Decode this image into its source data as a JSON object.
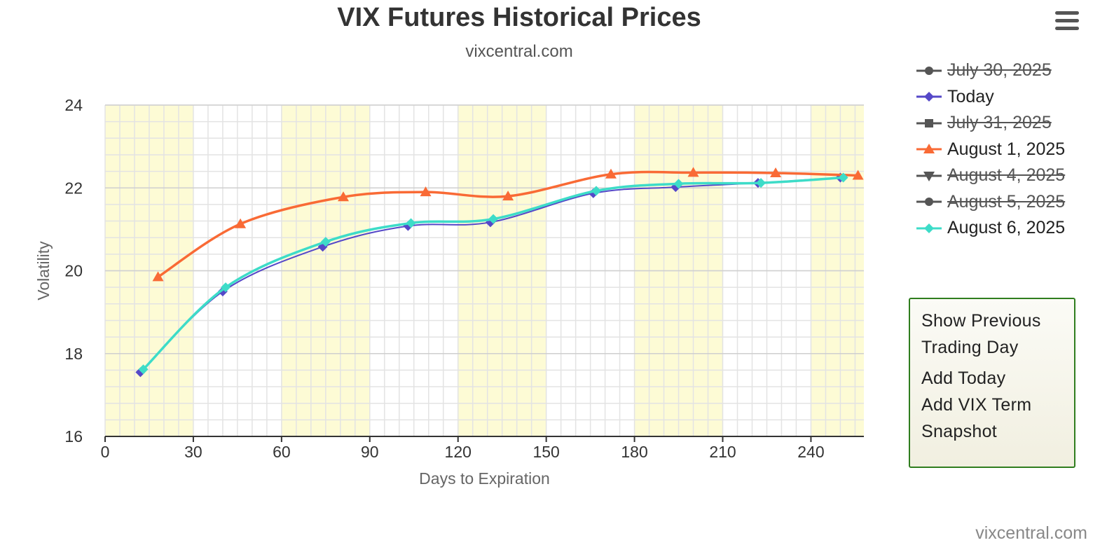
{
  "header": {
    "title": "VIX Futures Historical Prices",
    "subtitle": "vixcentral.com",
    "menu_icon": "hamburger-menu-icon"
  },
  "credit": "vixcentral.com",
  "context_menu": {
    "items": [
      "Show Previous Trading Day",
      "Add Today",
      "Add VIX Term",
      "Snapshot"
    ],
    "border_color": "#2f7d1e"
  },
  "legend": {
    "placement": "right",
    "items": [
      {
        "label": "July 30, 2025",
        "visible": false,
        "color": "#555555",
        "symbol": "circle"
      },
      {
        "label": "Today",
        "visible": true,
        "color": "#5548c8",
        "symbol": "diamond"
      },
      {
        "label": "July 31, 2025",
        "visible": false,
        "color": "#555555",
        "symbol": "square"
      },
      {
        "label": "August 1, 2025",
        "visible": true,
        "color": "#f96a35",
        "symbol": "triangle"
      },
      {
        "label": "August 4, 2025",
        "visible": false,
        "color": "#555555",
        "symbol": "triangle-down"
      },
      {
        "label": "August 5, 2025",
        "visible": false,
        "color": "#555555",
        "symbol": "circle"
      },
      {
        "label": "August 6, 2025",
        "visible": true,
        "color": "#3ddcc8",
        "symbol": "diamond"
      }
    ]
  },
  "chart_data": {
    "type": "line",
    "title": "VIX Futures Historical Prices",
    "subtitle": "vixcentral.com",
    "xlabel": "Days to Expiration",
    "ylabel": "Volatility",
    "xlim": [
      0,
      258
    ],
    "ylim": [
      16,
      24
    ],
    "x_ticks": [
      0,
      30,
      60,
      90,
      120,
      150,
      180,
      210,
      240
    ],
    "y_ticks": [
      16,
      18,
      20,
      22,
      24
    ],
    "grid": true,
    "alternating_bands": {
      "color": "#fdfbd5",
      "band_width_days": 30
    },
    "series": [
      {
        "name": "Today",
        "color": "#5548c8",
        "marker": "diamond",
        "x": [
          12,
          40,
          74,
          103,
          131,
          166,
          194,
          222,
          250
        ],
        "y": [
          17.55,
          19.5,
          20.58,
          21.08,
          21.17,
          21.87,
          22.02,
          22.12,
          22.25
        ]
      },
      {
        "name": "August 1, 2025",
        "color": "#f96a35",
        "marker": "triangle",
        "x": [
          18,
          46,
          81,
          109,
          137,
          172,
          200,
          228,
          256
        ],
        "y": [
          19.85,
          21.13,
          21.78,
          21.9,
          21.8,
          22.33,
          22.37,
          22.36,
          22.3
        ]
      },
      {
        "name": "August 6, 2025",
        "color": "#3ddcc8",
        "marker": "diamond",
        "x": [
          13,
          41,
          75,
          104,
          132,
          167,
          195,
          223,
          251
        ],
        "y": [
          17.62,
          19.6,
          20.7,
          21.15,
          21.25,
          21.93,
          22.1,
          22.12,
          22.25
        ]
      }
    ]
  }
}
